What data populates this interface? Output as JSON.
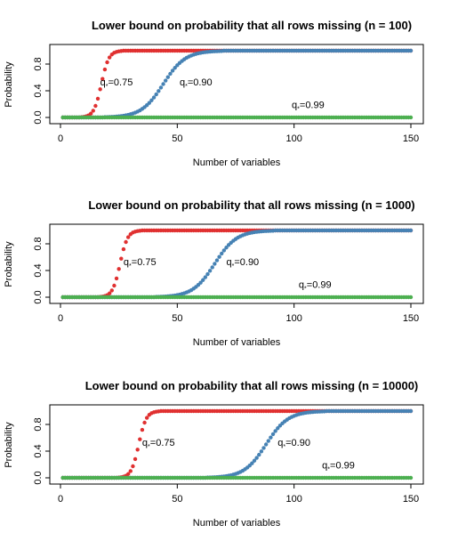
{
  "chart_data": [
    {
      "type": "scatter",
      "title": "Lower bound on probability that all rows missing (n = 100)",
      "xlabel": "Number of variables",
      "ylabel": "Probability",
      "xlim": [
        0,
        150
      ],
      "ylim": [
        0,
        1
      ],
      "x_ticks": [
        "0",
        "50",
        "100",
        "150"
      ],
      "y_ticks": [
        "0.0",
        "0.4",
        "0.8"
      ],
      "x_tick_values": [
        0,
        50,
        100,
        150
      ],
      "y_tick_values": [
        0,
        0.4,
        0.8
      ],
      "series": [
        {
          "label_q": "q",
          "label_sub": "*",
          "label_rest": "=0.75",
          "color": "#e03030",
          "center": 17.5,
          "scale": 1.6,
          "label_x": 17,
          "label_y": 0.48
        },
        {
          "label_q": "q",
          "label_sub": "*",
          "label_rest": "=0.90",
          "color": "#4682b4",
          "center": 44,
          "scale": 4.7,
          "label_x": 51,
          "label_y": 0.48
        },
        {
          "label_q": "q",
          "label_sub": "*",
          "label_rest": "=0.99",
          "color": "#4caf50",
          "center": 460,
          "scale": 45,
          "label_x": 99,
          "label_y": 0.14
        }
      ]
    },
    {
      "type": "scatter",
      "title": "Lower bound on probability that all rows missing (n = 1000)",
      "xlabel": "Number of variables",
      "ylabel": "Probability",
      "xlim": [
        0,
        150
      ],
      "ylim": [
        0,
        1
      ],
      "x_ticks": [
        "0",
        "50",
        "100",
        "150"
      ],
      "y_ticks": [
        "0.0",
        "0.4",
        "0.8"
      ],
      "x_tick_values": [
        0,
        50,
        100,
        150
      ],
      "y_tick_values": [
        0,
        0.4,
        0.8
      ],
      "series": [
        {
          "label_q": "q",
          "label_sub": "*",
          "label_rest": "=0.75",
          "color": "#e03030",
          "center": 25.5,
          "scale": 1.6,
          "label_x": 27,
          "label_y": 0.48
        },
        {
          "label_q": "q",
          "label_sub": "*",
          "label_rest": "=0.90",
          "color": "#4682b4",
          "center": 66,
          "scale": 4.7,
          "label_x": 71,
          "label_y": 0.48
        },
        {
          "label_q": "q",
          "label_sub": "*",
          "label_rest": "=0.99",
          "color": "#4caf50",
          "center": 690,
          "scale": 45,
          "label_x": 102,
          "label_y": 0.14
        }
      ]
    },
    {
      "type": "scatter",
      "title": "Lower bound on probability that all rows missing (n = 10000)",
      "xlabel": "Number of variables",
      "ylabel": "Probability",
      "xlim": [
        0,
        150
      ],
      "ylim": [
        0,
        1
      ],
      "x_ticks": [
        "0",
        "50",
        "100",
        "150"
      ],
      "y_ticks": [
        "0.0",
        "0.4",
        "0.8"
      ],
      "x_tick_values": [
        0,
        50,
        100,
        150
      ],
      "y_tick_values": [
        0,
        0.4,
        0.8
      ],
      "series": [
        {
          "label_q": "q",
          "label_sub": "*",
          "label_rest": "=0.75",
          "color": "#e03030",
          "center": 33.5,
          "scale": 1.6,
          "label_x": 35,
          "label_y": 0.48
        },
        {
          "label_q": "q",
          "label_sub": "*",
          "label_rest": "=0.90",
          "color": "#4682b4",
          "center": 88,
          "scale": 4.7,
          "label_x": 93,
          "label_y": 0.48
        },
        {
          "label_q": "q",
          "label_sub": "*",
          "label_rest": "=0.99",
          "color": "#4caf50",
          "center": 920,
          "scale": 45,
          "label_x": 112,
          "label_y": 0.14
        }
      ]
    }
  ]
}
